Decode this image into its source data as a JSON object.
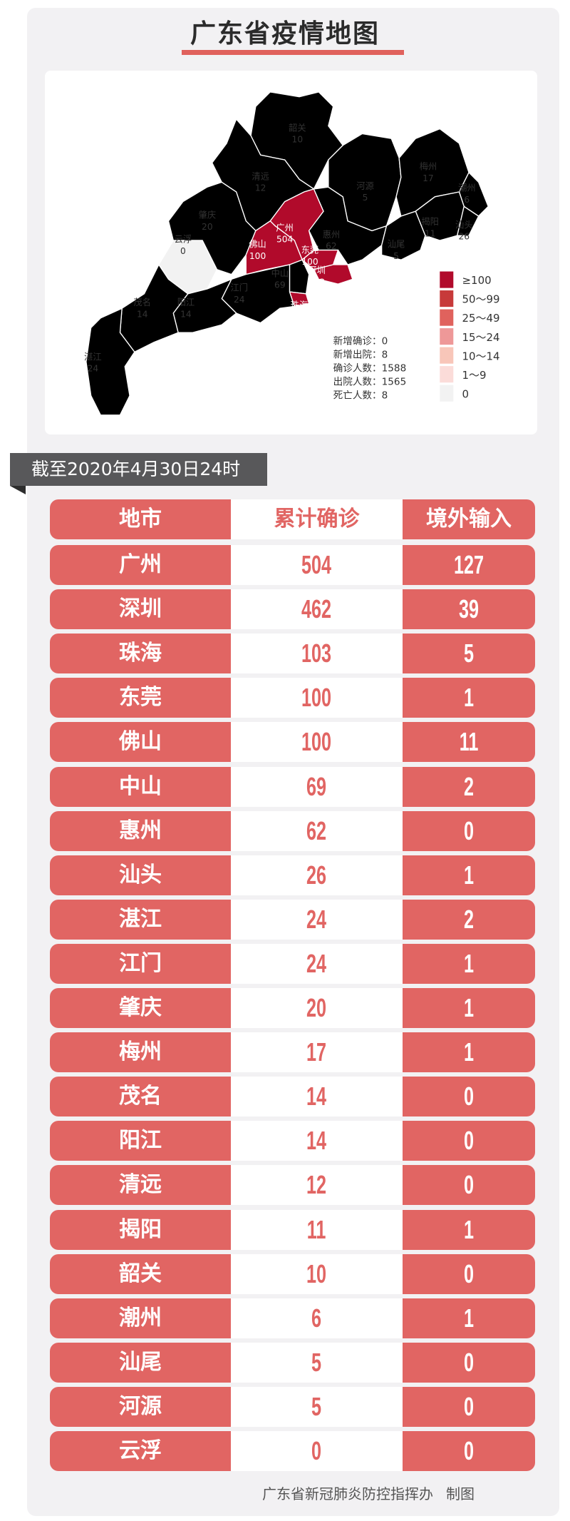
{
  "title": "广东省疫情地图",
  "map": {
    "regions": [
      {
        "name": "韶关",
        "value": "10",
        "bin": "10~14"
      },
      {
        "name": "清远",
        "value": "12",
        "bin": "10~14"
      },
      {
        "name": "肇庆",
        "value": "20",
        "bin": "15~24"
      },
      {
        "name": "云浮",
        "value": "0",
        "bin": "0"
      },
      {
        "name": "广州",
        "value": "504",
        "bin": "≥100"
      },
      {
        "name": "佛山",
        "value": "100",
        "bin": "≥100"
      },
      {
        "name": "惠州",
        "value": "62",
        "bin": "50~99"
      },
      {
        "name": "东莞",
        "value": "100",
        "bin": "≥100"
      },
      {
        "name": "深圳",
        "value": "462",
        "bin": "≥100"
      },
      {
        "name": "中山",
        "value": "69",
        "bin": "50~99"
      },
      {
        "name": "珠海",
        "value": "103",
        "bin": "≥100"
      },
      {
        "name": "江门",
        "value": "24",
        "bin": "15~24"
      },
      {
        "name": "阳江",
        "value": "14",
        "bin": "10~14"
      },
      {
        "name": "茂名",
        "value": "14",
        "bin": "10~14"
      },
      {
        "name": "湛江",
        "value": "24",
        "bin": "15~24"
      },
      {
        "name": "河源",
        "value": "5",
        "bin": "1~9"
      },
      {
        "name": "梅州",
        "value": "17",
        "bin": "15~24"
      },
      {
        "name": "潮州",
        "value": "6",
        "bin": "1~9"
      },
      {
        "name": "揭阳",
        "value": "11",
        "bin": "10~14"
      },
      {
        "name": "汕头",
        "value": "26",
        "bin": "25~49"
      },
      {
        "name": "汕尾",
        "value": "5",
        "bin": "1~9"
      }
    ],
    "legend": [
      {
        "label": "≥100",
        "color": "#b10a2b"
      },
      {
        "label": "50～99",
        "color": "#c73a3a"
      },
      {
        "label": "25～49",
        "color": "#e0625d"
      },
      {
        "label": "15～24",
        "color": "#ee9898"
      },
      {
        "label": "10～14",
        "color": "#f8c6b9"
      },
      {
        "label": "1～9",
        "color": "#fbdcd9"
      },
      {
        "label": "0",
        "color": "#f2f2f2"
      }
    ],
    "stats": [
      "新增确诊：0",
      "新增出院：8",
      "确诊人数：1588",
      "出院人数：1565",
      "死亡人数：8"
    ]
  },
  "as_of": "截至2020年4月30日24时",
  "table": {
    "headers": [
      "地市",
      "累计确诊",
      "境外输入"
    ],
    "rows": [
      [
        "广州",
        "504",
        "127"
      ],
      [
        "深圳",
        "462",
        "39"
      ],
      [
        "珠海",
        "103",
        "5"
      ],
      [
        "东莞",
        "100",
        "1"
      ],
      [
        "佛山",
        "100",
        "11"
      ],
      [
        "中山",
        "69",
        "2"
      ],
      [
        "惠州",
        "62",
        "0"
      ],
      [
        "汕头",
        "26",
        "1"
      ],
      [
        "湛江",
        "24",
        "2"
      ],
      [
        "江门",
        "24",
        "1"
      ],
      [
        "肇庆",
        "20",
        "1"
      ],
      [
        "梅州",
        "17",
        "1"
      ],
      [
        "茂名",
        "14",
        "0"
      ],
      [
        "阳江",
        "14",
        "0"
      ],
      [
        "清远",
        "12",
        "0"
      ],
      [
        "揭阳",
        "11",
        "1"
      ],
      [
        "韶关",
        "10",
        "0"
      ],
      [
        "潮州",
        "6",
        "1"
      ],
      [
        "汕尾",
        "5",
        "0"
      ],
      [
        "河源",
        "5",
        "0"
      ],
      [
        "云浮",
        "0",
        "0"
      ]
    ]
  },
  "footer": {
    "org": "广东省新冠肺炎防控指挥办",
    "made": "制图"
  },
  "colors": {
    "accent": "#e16563",
    "banner": "#58585a",
    "card": "#f2f1f3"
  }
}
